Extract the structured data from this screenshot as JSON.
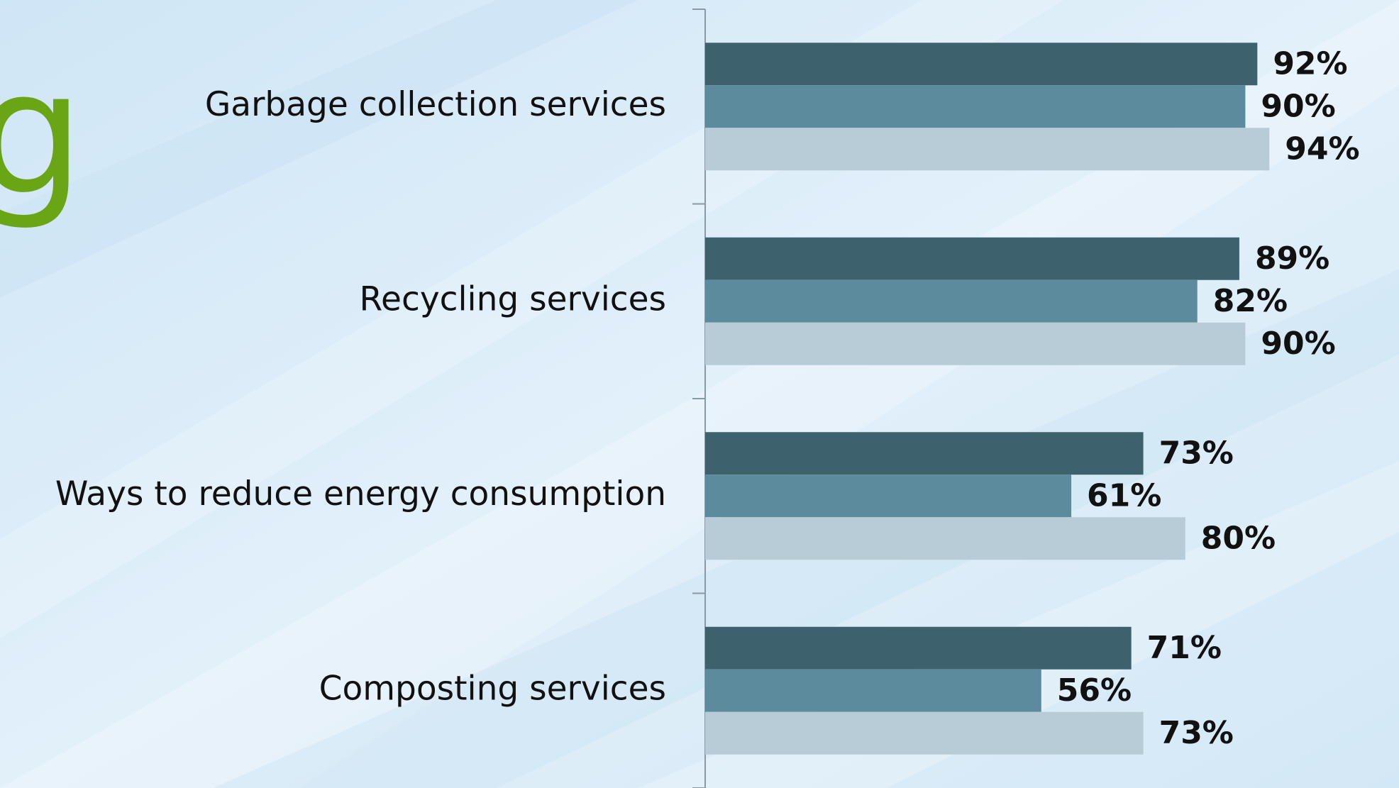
{
  "chart_data": {
    "type": "hbar",
    "title": "g",
    "categories": [
      "Garbage collection services",
      "Recycling services",
      "Ways to reduce energy consumption",
      "Composting services"
    ],
    "series": [
      {
        "color": "#3e626d",
        "values": [
          92,
          89,
          73,
          71
        ],
        "value_labels": [
          "92%",
          "89%",
          "73%",
          "71%"
        ]
      },
      {
        "color": "#5c8b9d",
        "values": [
          90,
          82,
          61,
          56
        ],
        "value_labels": [
          "90%",
          "82%",
          "61%",
          "56%"
        ]
      },
      {
        "color": "#b7ccd6",
        "values": [
          94,
          90,
          80,
          73
        ],
        "value_labels": [
          "94%",
          "90%",
          "80%",
          "73%"
        ]
      }
    ],
    "xlim": [
      0,
      100
    ]
  }
}
